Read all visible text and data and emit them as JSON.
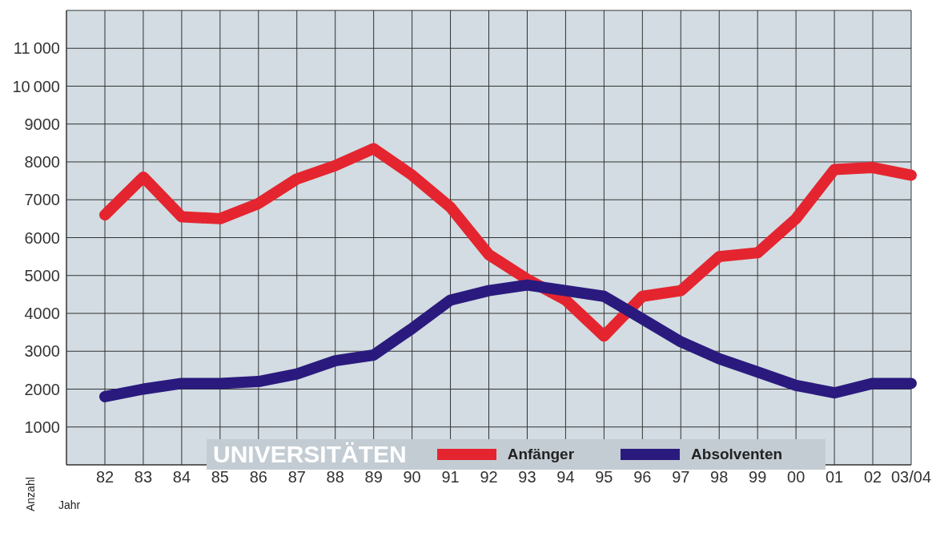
{
  "chart_data": {
    "type": "line",
    "xlabel": "Jahr",
    "ylabel": "Anzahl",
    "legend_title": "UNIVERSITÄTEN",
    "categories": [
      "82",
      "83",
      "84",
      "85",
      "86",
      "87",
      "88",
      "89",
      "90",
      "91",
      "92",
      "93",
      "94",
      "95",
      "96",
      "97",
      "98",
      "99",
      "00",
      "01",
      "02",
      "03/04"
    ],
    "series": [
      {
        "name": "Anfänger",
        "color": "#e4252f",
        "values": [
          6600,
          7600,
          6550,
          6500,
          6900,
          7550,
          7900,
          8350,
          7650,
          6800,
          5550,
          4900,
          4350,
          3400,
          4450,
          4600,
          5500,
          5600,
          6500,
          7800,
          7850,
          7650
        ]
      },
      {
        "name": "Absolventen",
        "color": "#2a1a7e",
        "values": [
          1800,
          2000,
          2150,
          2150,
          2200,
          2400,
          2750,
          2900,
          3600,
          4350,
          4600,
          4750,
          4600,
          4450,
          3850,
          3250,
          2800,
          2450,
          2100,
          1900,
          2150,
          2150
        ]
      }
    ],
    "ylim": [
      0,
      12000
    ],
    "yticks": [
      1000,
      2000,
      3000,
      4000,
      5000,
      6000,
      7000,
      8000,
      9000,
      10000,
      11000
    ],
    "grid": true,
    "legend": "bottom",
    "marker": "none",
    "line_style": "solid"
  }
}
